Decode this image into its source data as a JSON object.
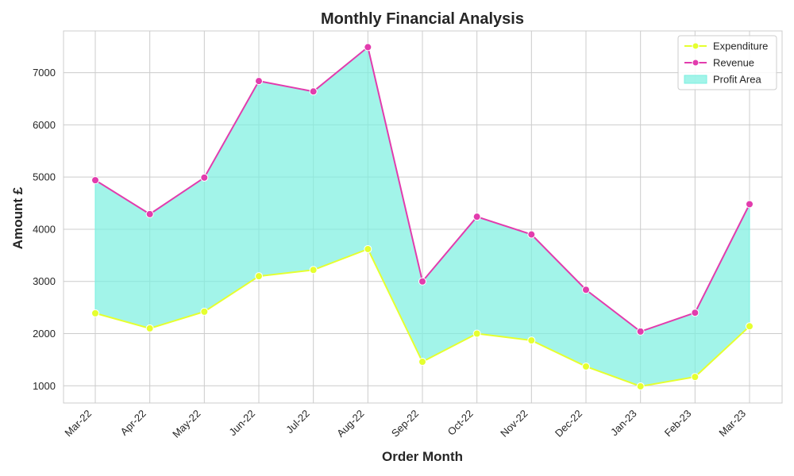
{
  "chart_data": {
    "type": "line",
    "title": "Monthly Financial Analysis",
    "xlabel": "Order Month",
    "ylabel": "Amount £",
    "categories": [
      "Mar-22",
      "Apr-22",
      "May-22",
      "Jun-22",
      "Jul-22",
      "Aug-22",
      "Sep-22",
      "Oct-22",
      "Nov-22",
      "Dec-22",
      "Jan-23",
      "Feb-23",
      "Mar-23"
    ],
    "series": [
      {
        "name": "Expenditure",
        "color": "#e5ff2f",
        "values": [
          2390,
          2100,
          2420,
          3100,
          3220,
          3620,
          1460,
          2000,
          1870,
          1370,
          990,
          1170,
          2140
        ]
      },
      {
        "name": "Revenue",
        "color": "#e23cad",
        "values": [
          4940,
          4290,
          4990,
          6840,
          6640,
          7490,
          3000,
          4240,
          3900,
          2840,
          2040,
          2400,
          4480
        ]
      }
    ],
    "fill": {
      "name": "Profit Area",
      "color": "#7aefe0",
      "between": [
        "Expenditure",
        "Revenue"
      ]
    },
    "ylim": [
      670,
      7800
    ],
    "yticks": [
      1000,
      2000,
      3000,
      4000,
      5000,
      6000,
      7000
    ],
    "grid": true,
    "legend_position": "top-right"
  }
}
